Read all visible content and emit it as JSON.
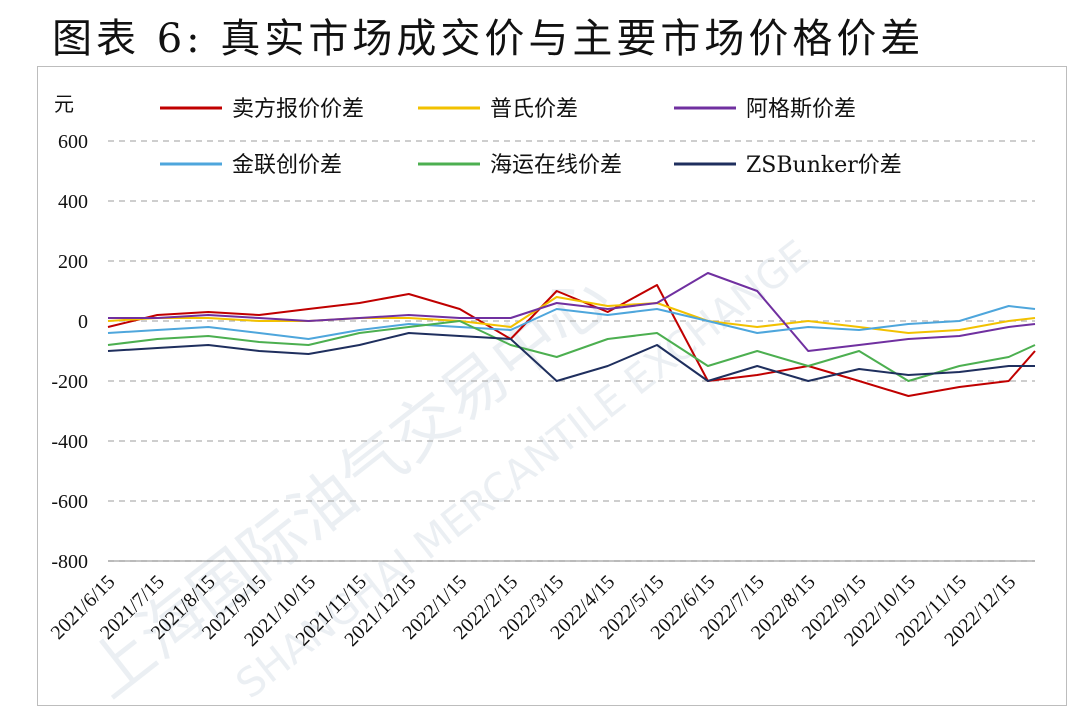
{
  "title": "图表 6: 真实市场成交价与主要市场价格价差",
  "watermark": {
    "cn": "上海国际油气交易中心",
    "en": "SHANGHAI MERCANTILE EXCHANGE"
  },
  "chart_data": {
    "type": "line",
    "ylabel": "元",
    "ylim": [
      -800,
      600
    ],
    "yticks": [
      600,
      400,
      200,
      0,
      -200,
      -400,
      -600,
      -800
    ],
    "grid": true,
    "legend_position": "top",
    "x_tick_labels": [
      "2021/6/15",
      "2021/7/15",
      "2021/8/15",
      "2021/9/15",
      "2021/10/15",
      "2021/11/15",
      "2021/12/15",
      "2022/1/15",
      "2022/2/15",
      "2022/3/15",
      "2022/4/15",
      "2022/5/15",
      "2022/6/15",
      "2022/7/15",
      "2022/8/15",
      "2022/9/15",
      "2022/10/15",
      "2022/11/15",
      "2022/12/15"
    ],
    "x": [
      "2021/6/15",
      "2021/7/15",
      "2021/8/15",
      "2021/9/15",
      "2021/10/15",
      "2021/11/15",
      "2021/12/15",
      "2022/1/15",
      "2022/2/15",
      "2022/3/15",
      "2022/4/15",
      "2022/5/15",
      "2022/6/15",
      "2022/7/15",
      "2022/8/15",
      "2022/9/15",
      "2022/10/15",
      "2022/11/15",
      "2022/12/15",
      "2022/12/31"
    ],
    "series": [
      {
        "name": "卖方报价价差",
        "color": "#c00000",
        "values": [
          -20,
          20,
          30,
          20,
          40,
          60,
          90,
          40,
          -60,
          100,
          30,
          120,
          -200,
          -180,
          -150,
          -200,
          -250,
          -220,
          -200,
          -100
        ]
      },
      {
        "name": "普氏价差",
        "color": "#f2c100",
        "values": [
          0,
          10,
          10,
          0,
          0,
          10,
          10,
          0,
          -20,
          80,
          50,
          60,
          0,
          -20,
          0,
          -20,
          -40,
          -30,
          0,
          10
        ]
      },
      {
        "name": "阿格斯价差",
        "color": "#7030a0",
        "values": [
          10,
          10,
          20,
          10,
          0,
          10,
          20,
          10,
          10,
          60,
          40,
          60,
          160,
          100,
          -100,
          -80,
          -60,
          -50,
          -20,
          -10
        ]
      },
      {
        "name": "金联创价差",
        "color": "#4ea6dc",
        "values": [
          -40,
          -30,
          -20,
          -40,
          -60,
          -30,
          -10,
          -20,
          -30,
          40,
          20,
          40,
          0,
          -40,
          -20,
          -30,
          -10,
          0,
          50,
          40
        ]
      },
      {
        "name": "海运在线价差",
        "color": "#4caf50",
        "values": [
          -80,
          -60,
          -50,
          -70,
          -80,
          -40,
          -20,
          0,
          -80,
          -120,
          -60,
          -40,
          -150,
          -100,
          -150,
          -100,
          -200,
          -150,
          -120,
          -80
        ]
      },
      {
        "name": "ZSBunker价差",
        "color": "#1f2f5e",
        "values": [
          -100,
          -90,
          -80,
          -100,
          -110,
          -80,
          -40,
          -50,
          -60,
          -200,
          -150,
          -80,
          -200,
          -150,
          -200,
          -160,
          -180,
          -170,
          -150,
          -150
        ]
      }
    ]
  }
}
